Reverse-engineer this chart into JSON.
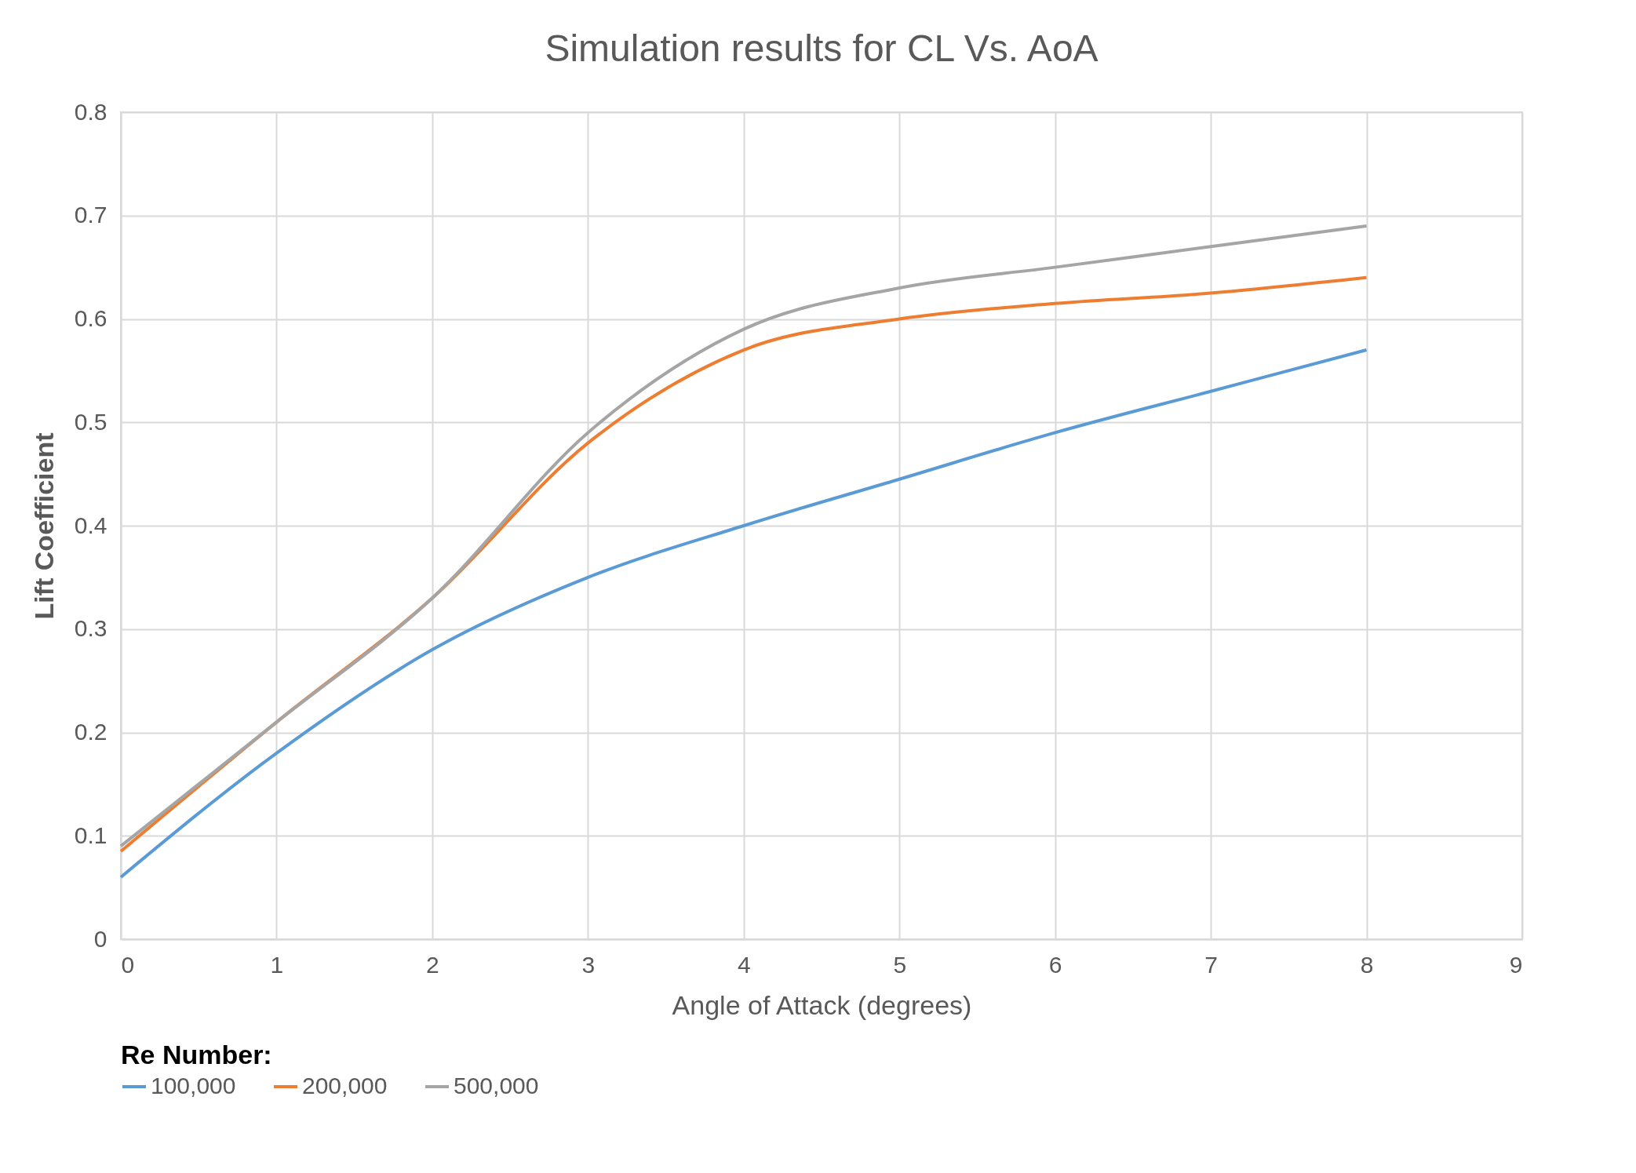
{
  "chart_data": {
    "type": "line",
    "title": "Simulation results for CL Vs. AoA",
    "xlabel": "Angle of Attack (degrees)",
    "ylabel": "Lift Coefficient",
    "legend_title": "Re Number:",
    "x": [
      0,
      1,
      2,
      3,
      4,
      5,
      6,
      7,
      8
    ],
    "series": [
      {
        "name": "100,000",
        "color": "#5b9bd5",
        "values": [
          0.06,
          0.18,
          0.28,
          0.35,
          0.4,
          0.445,
          0.49,
          0.53,
          0.57
        ]
      },
      {
        "name": "200,000",
        "color": "#ed7d31",
        "values": [
          0.085,
          0.21,
          0.33,
          0.48,
          0.57,
          0.6,
          0.615,
          0.625,
          0.64
        ]
      },
      {
        "name": "500,000",
        "color": "#a5a5a5",
        "values": [
          0.09,
          0.21,
          0.33,
          0.49,
          0.59,
          0.63,
          0.65,
          0.67,
          0.69
        ]
      }
    ],
    "xlim": [
      0,
      9
    ],
    "xticks": [
      0,
      1,
      2,
      3,
      4,
      5,
      6,
      7,
      8,
      9
    ],
    "ylim": [
      0,
      0.8
    ],
    "yticks": [
      0,
      0.1,
      0.2,
      0.3,
      0.4,
      0.5,
      0.6,
      0.7,
      0.8
    ],
    "grid": true,
    "legend": "bottom",
    "marker": "none",
    "line_style": "solid"
  }
}
